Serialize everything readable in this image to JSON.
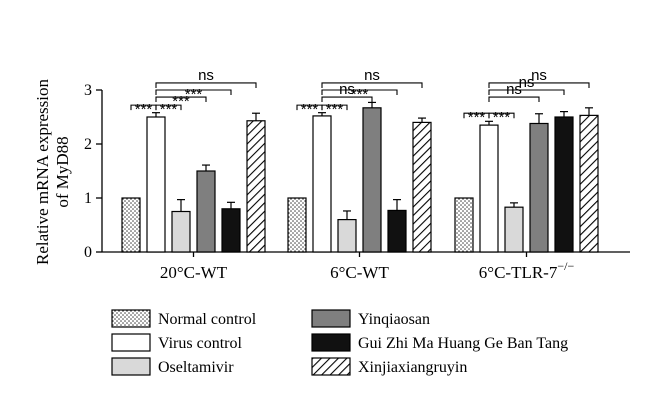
{
  "chart_data": {
    "type": "bar",
    "ylabel_lines": [
      "Relative mRNA expression",
      "of MyD88"
    ],
    "ylim": [
      0,
      3
    ],
    "yticks": [
      "0",
      "1",
      "2",
      "3"
    ],
    "groups": [
      {
        "label": "20°C-WT"
      },
      {
        "label": "6°C-WT"
      },
      {
        "label": "6°C-TLR-7",
        "label_sup": "−/−"
      }
    ],
    "series": [
      {
        "name": "Normal control",
        "pattern": "dots",
        "values": [
          1.0,
          1.0,
          1.0
        ],
        "errors": [
          0,
          0,
          0
        ]
      },
      {
        "name": "Virus control",
        "pattern": "white",
        "values": [
          2.5,
          2.52,
          2.35
        ],
        "errors": [
          0.08,
          0.06,
          0.07
        ]
      },
      {
        "name": "Oseltamivir",
        "pattern": "light",
        "values": [
          0.75,
          0.6,
          0.83
        ],
        "errors": [
          0.22,
          0.16,
          0.08
        ]
      },
      {
        "name": "Yinqiaosan",
        "pattern": "dark",
        "values": [
          1.5,
          2.67,
          2.38
        ],
        "errors": [
          0.11,
          0.1,
          0.18
        ]
      },
      {
        "name": "Gui Zhi Ma Huang Ge Ban Tang",
        "pattern": "black",
        "values": [
          0.8,
          0.77,
          2.5
        ],
        "errors": [
          0.12,
          0.2,
          0.1
        ]
      },
      {
        "name": "Xinjiaxiangruyin",
        "pattern": "hatch",
        "values": [
          2.43,
          2.4,
          2.53
        ],
        "errors": [
          0.14,
          0.08,
          0.14
        ]
      }
    ],
    "significance": [
      {
        "group": 0,
        "from": 1,
        "to": 5,
        "level": 3.13,
        "label": "ns"
      },
      {
        "group": 0,
        "from": 1,
        "to": 4,
        "level": 3.0,
        "label": "***"
      },
      {
        "group": 0,
        "from": 1,
        "to": 3,
        "level": 2.87,
        "label": "***"
      },
      {
        "group": 0,
        "from": 1,
        "to": 2,
        "level": 2.72,
        "label": "***"
      },
      {
        "group": 0,
        "from": 0,
        "to": 1,
        "level": 2.72,
        "label": "***"
      },
      {
        "group": 1,
        "from": 1,
        "to": 5,
        "level": 3.13,
        "label": "ns"
      },
      {
        "group": 1,
        "from": 1,
        "to": 4,
        "level": 3.0,
        "label": "***"
      },
      {
        "group": 1,
        "from": 1,
        "to": 3,
        "level": 2.87,
        "label": "ns"
      },
      {
        "group": 1,
        "from": 1,
        "to": 2,
        "level": 2.72,
        "label": "***"
      },
      {
        "group": 1,
        "from": 0,
        "to": 1,
        "level": 2.72,
        "label": "***"
      },
      {
        "group": 2,
        "from": 1,
        "to": 5,
        "level": 3.13,
        "label": "ns"
      },
      {
        "group": 2,
        "from": 1,
        "to": 4,
        "level": 3.0,
        "label": "ns"
      },
      {
        "group": 2,
        "from": 1,
        "to": 3,
        "level": 2.87,
        "label": "ns"
      },
      {
        "group": 2,
        "from": 1,
        "to": 2,
        "level": 2.57,
        "label": "***"
      },
      {
        "group": 2,
        "from": 0,
        "to": 1,
        "level": 2.57,
        "label": "***"
      }
    ],
    "grid": false,
    "legend_position": "bottom"
  }
}
